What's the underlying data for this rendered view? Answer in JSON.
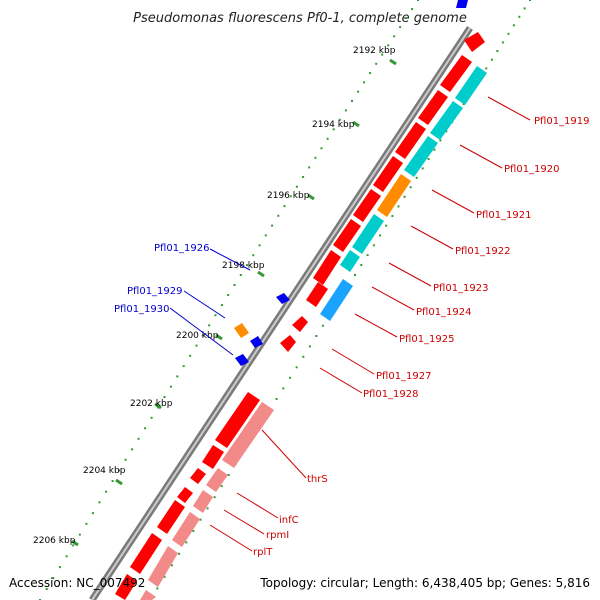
{
  "title": "Pseudomonas fluorescens Pf0-1, complete genome",
  "ticks": [
    {
      "label": "2192 kbp"
    },
    {
      "label": "2194 kbp"
    },
    {
      "label": "2196 kbp"
    },
    {
      "label": "2198 kbp"
    },
    {
      "label": "2200 kbp"
    },
    {
      "label": "2202 kbp"
    },
    {
      "label": "2204 kbp"
    },
    {
      "label": "2206 kbp"
    }
  ],
  "genes_right": [
    {
      "label": "Pfl01_1919"
    },
    {
      "label": "Pfl01_1920"
    },
    {
      "label": "Pfl01_1921"
    },
    {
      "label": "Pfl01_1922"
    },
    {
      "label": "Pfl01_1923"
    },
    {
      "label": "Pfl01_1924"
    },
    {
      "label": "Pfl01_1925"
    },
    {
      "label": "Pfl01_1927"
    },
    {
      "label": "Pfl01_1928"
    },
    {
      "label": "thrS"
    },
    {
      "label": "infC"
    },
    {
      "label": "rpmI"
    },
    {
      "label": "rplT"
    }
  ],
  "genes_left": [
    {
      "label": "Pfl01_1926"
    },
    {
      "label": "Pfl01_1929"
    },
    {
      "label": "Pfl01_1930"
    }
  ],
  "colors": {
    "cds_forward": "#ff0000",
    "cds_reverse": "#ff0000",
    "rna": "#f28a8a",
    "orf_cyan": "#00cccc",
    "orf_orange": "#ff8c00",
    "orf_blue": "#0000ee",
    "orf_skyblue": "#1aa3ff",
    "backbone": "#888888",
    "tick": "#339933"
  },
  "footer": {
    "accession": "Accession: NC_007492",
    "summary": "Topology: circular; Length: 6,438,405 bp; Genes: 5,816"
  }
}
